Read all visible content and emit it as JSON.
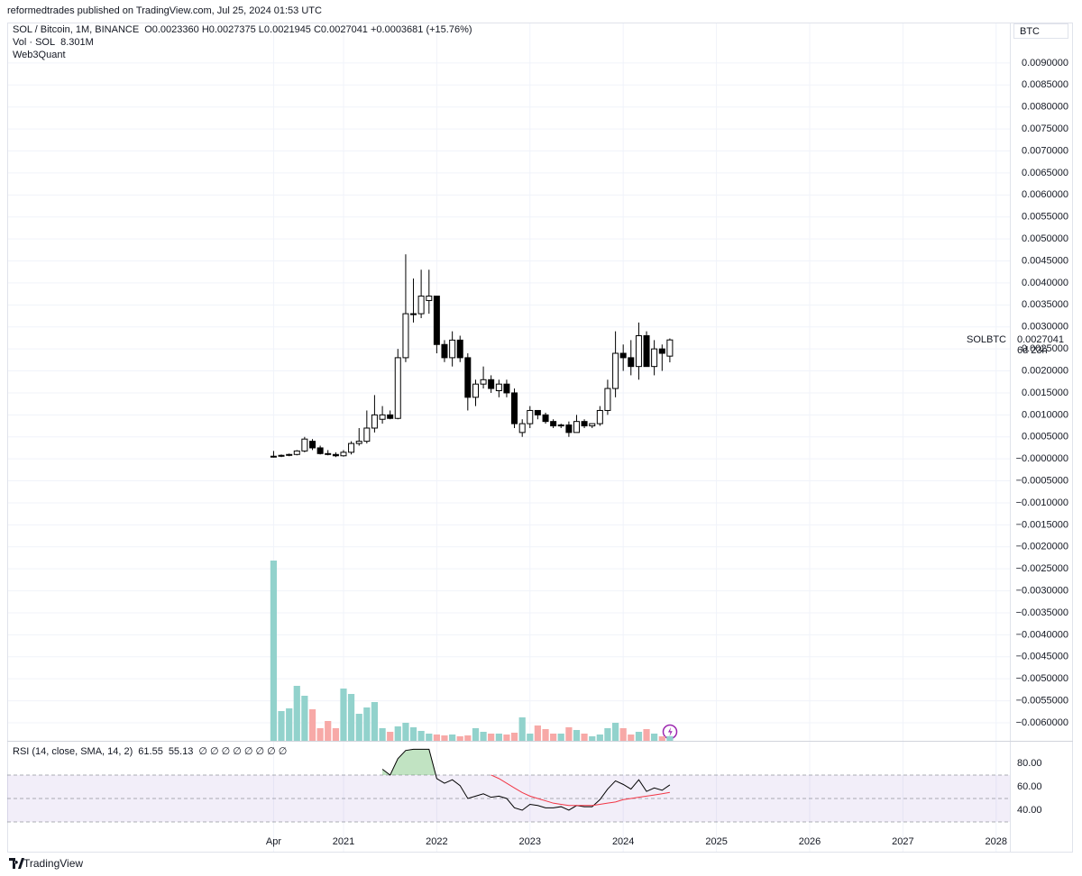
{
  "header": {
    "published": "reformedtrades published on TradingView.com, Jul 25, 2024 01:53 UTC"
  },
  "footer": {
    "brand": "TradingView"
  },
  "chart_data": {
    "type": "candlestick",
    "title": "SOL / Bitcoin, 1M, BINANCE",
    "ohlc_text": "O0.0023360 H0.0027375 L0.0021945 C0.0027041 +0.0003681 (+15.76%)",
    "indicator": "Web3Quant",
    "currency": "BTC",
    "symbol": "SOLBTC",
    "last_price_label": "0.0027041",
    "countdown": "6d 23h",
    "up_color": "#ffffff",
    "down_color": "#000000",
    "wick_color": "#000000",
    "grid": true,
    "x": [
      2020.25,
      2020.333,
      2020.417,
      2020.5,
      2020.583,
      2020.667,
      2020.75,
      2020.833,
      2020.917,
      2021,
      2021.083,
      2021.167,
      2021.25,
      2021.333,
      2021.417,
      2021.5,
      2021.583,
      2021.667,
      2021.75,
      2021.833,
      2021.917,
      2022,
      2022.083,
      2022.167,
      2022.25,
      2022.333,
      2022.417,
      2022.5,
      2022.583,
      2022.667,
      2022.75,
      2022.833,
      2022.917,
      2023,
      2023.083,
      2023.167,
      2023.25,
      2023.333,
      2023.417,
      2023.5,
      2023.583,
      2023.667,
      2023.75,
      2023.833,
      2023.917,
      2024,
      2024.083,
      2024.167,
      2024.25,
      2024.333,
      2024.417,
      2024.5
    ],
    "xlim": [
      2017.393,
      2028.147
    ],
    "xticks": [
      {
        "value": 2020.25,
        "label": "Apr"
      },
      2021,
      2022,
      2023,
      2024,
      2025,
      2026,
      2027,
      2028
    ],
    "open": [
      5e-05,
      6e-05,
      8e-05,
      0.0001,
      0.00018,
      0.0004,
      0.00025,
      0.00012,
      0.0001,
      7e-05,
      0.00015,
      0.00035,
      0.0004,
      0.0007,
      0.0009,
      0.001,
      0.00092,
      0.0023,
      0.0033,
      0.0033,
      0.0036,
      0.0037,
      0.0026,
      0.0023,
      0.0027,
      0.0023,
      0.0014,
      0.0017,
      0.0018,
      0.00155,
      0.0017,
      0.0015,
      0.0006,
      0.0008,
      0.0011,
      0.001,
      0.00085,
      0.00075,
      0.00077,
      0.0006,
      0.00085,
      0.00075,
      0.0008,
      0.0011,
      0.0016,
      0.0024,
      0.0023,
      0.0021,
      0.0028,
      0.0021,
      0.0025,
      0.002336
    ],
    "high": [
      0.00018,
      0.0001,
      0.00012,
      0.0002,
      0.0005,
      0.00045,
      0.0003,
      0.0002,
      0.00015,
      0.0002,
      0.0004,
      0.0007,
      0.0011,
      0.00145,
      0.0012,
      0.0011,
      0.0025,
      0.00465,
      0.0041,
      0.0043,
      0.0043,
      0.0037,
      0.0027,
      0.0029,
      0.0028,
      0.0024,
      0.0018,
      0.0021,
      0.0019,
      0.0018,
      0.0018,
      0.0016,
      0.0009,
      0.0012,
      0.0011,
      0.00105,
      0.0009,
      0.0008,
      0.00085,
      0.001,
      0.0009,
      0.0008,
      0.0012,
      0.0018,
      0.0029,
      0.0026,
      0.0027,
      0.0031,
      0.0029,
      0.0027,
      0.0026,
      0.0027375
    ],
    "low": [
      3e-05,
      4e-05,
      6e-05,
      8e-05,
      0.00015,
      0.0002,
      0.0001,
      8e-05,
      4e-05,
      5e-05,
      0.0001,
      0.0003,
      0.00035,
      0.0006,
      0.0008,
      0.0009,
      0.0009,
      0.0022,
      0.0031,
      0.0032,
      0.0033,
      0.0024,
      0.0022,
      0.0021,
      0.0022,
      0.0011,
      0.0012,
      0.0016,
      0.0015,
      0.0014,
      0.0014,
      0.0007,
      0.0005,
      0.0007,
      0.0009,
      0.0008,
      0.0007,
      0.0007,
      0.0005,
      0.0006,
      0.0007,
      0.0007,
      0.00075,
      0.001,
      0.0014,
      0.002,
      0.0019,
      0.0018,
      0.0021,
      0.0019,
      0.002,
      0.0021945
    ],
    "close": [
      6e-05,
      8e-05,
      0.0001,
      0.00018,
      0.00045,
      0.00025,
      0.00012,
      0.0001,
      7e-05,
      0.00015,
      0.00035,
      0.0004,
      0.0007,
      0.001,
      0.001,
      0.00092,
      0.0023,
      0.0033,
      0.0033,
      0.0037,
      0.0037,
      0.0026,
      0.0023,
      0.0027,
      0.0023,
      0.0014,
      0.0017,
      0.0018,
      0.0016,
      0.0017,
      0.0015,
      0.0008,
      0.0008,
      0.0011,
      0.001,
      0.00085,
      0.00075,
      0.00077,
      0.0006,
      0.00085,
      0.00075,
      0.0008,
      0.0011,
      0.0016,
      0.0024,
      0.0023,
      0.0021,
      0.0028,
      0.0021,
      0.0025,
      0.0024,
      0.0027041
    ],
    "ylim": [
      -0.00641,
      0.00992
    ],
    "yticks": [
      {
        "value": 0.009,
        "label": "0.0090000"
      },
      {
        "value": 0.0085,
        "label": "0.0085000"
      },
      {
        "value": 0.008,
        "label": "0.0080000"
      },
      {
        "value": 0.0075,
        "label": "0.0075000"
      },
      {
        "value": 0.007,
        "label": "0.0070000"
      },
      {
        "value": 0.0065,
        "label": "0.0065000"
      },
      {
        "value": 0.006,
        "label": "0.0060000"
      },
      {
        "value": 0.0055,
        "label": "0.0055000"
      },
      {
        "value": 0.005,
        "label": "0.0050000"
      },
      {
        "value": 0.0045,
        "label": "0.0045000"
      },
      {
        "value": 0.004,
        "label": "0.0040000"
      },
      {
        "value": 0.0035,
        "label": "0.0035000"
      },
      {
        "value": 0.003,
        "label": "0.0030000"
      },
      {
        "value": 0.0025,
        "label": "0.0025000"
      },
      {
        "value": 0.002,
        "label": "0.0020000"
      },
      {
        "value": 0.0015,
        "label": "0.0015000"
      },
      {
        "value": 0.001,
        "label": "0.0010000"
      },
      {
        "value": 0.0005,
        "label": "0.0005000"
      },
      {
        "value": 0,
        "label": "−0.0000000"
      },
      {
        "value": -0.0005,
        "label": "−0.0005000"
      },
      {
        "value": -0.001,
        "label": "−0.0010000"
      },
      {
        "value": -0.0015,
        "label": "−0.0015000"
      },
      {
        "value": -0.002,
        "label": "−0.0020000"
      },
      {
        "value": -0.0025,
        "label": "−0.0025000"
      },
      {
        "value": -0.003,
        "label": "−0.0030000"
      },
      {
        "value": -0.0035,
        "label": "−0.0035000"
      },
      {
        "value": -0.004,
        "label": "−0.0040000"
      },
      {
        "value": -0.0045,
        "label": "−0.0045000"
      },
      {
        "value": -0.005,
        "label": "−0.0050000"
      },
      {
        "value": -0.0055,
        "label": "−0.0055000"
      },
      {
        "value": -0.006,
        "label": "−0.0060000"
      }
    ],
    "volume": {
      "name": "Vol · SOL",
      "last_label": "8.301M",
      "up_color": "#92d2cc",
      "down_color": "#f7a9a7",
      "values": [
        320,
        52.8,
        57.6,
        97.6,
        80,
        56,
        22.4,
        35.2,
        22.4,
        92.8,
        83.2,
        48,
        59.2,
        68.8,
        22.4,
        16,
        25.6,
        32,
        24,
        17.6,
        12.8,
        11.2,
        9.6,
        11.2,
        8,
        9.6,
        22.4,
        16,
        12.8,
        12.8,
        11.2,
        14.4,
        41.6,
        12.8,
        27.2,
        20.8,
        12.8,
        12.8,
        24,
        19.2,
        12.8,
        8,
        11.2,
        22.4,
        32,
        22.4,
        11.2,
        16,
        20.8,
        12.8,
        8,
        8.301
      ]
    },
    "rsi": {
      "title": "RSI (14, close, SMA, 14, 2)",
      "value_label": "61.55",
      "sma_label": "55.13",
      "extras": "∅ ∅ ∅ ∅ ∅ ∅ ∅ ∅",
      "ylim": [
        4.6,
        99.2
      ],
      "yticks": [
        {
          "value": 80,
          "label": "80.00"
        },
        {
          "value": 60,
          "label": "60.00"
        },
        {
          "value": 40,
          "label": "40.00"
        }
      ],
      "bands": {
        "upper": 70,
        "middle": 50,
        "lower": 30
      },
      "band_color": "#7e57c2",
      "series": [
        {
          "name": "RSI",
          "color": "#000000",
          "values": [
            null,
            null,
            null,
            null,
            null,
            null,
            null,
            null,
            null,
            null,
            null,
            null,
            null,
            null,
            75,
            70,
            84,
            91,
            92,
            92,
            92,
            67,
            63,
            66,
            61,
            50,
            52,
            54,
            51,
            52,
            50,
            42,
            40,
            45,
            44,
            42,
            42,
            43,
            40,
            44,
            43,
            43,
            49,
            58,
            65,
            62,
            58,
            66,
            56,
            59,
            57,
            61.55
          ]
        },
        {
          "name": "SMA",
          "color": "#f23645",
          "values": [
            null,
            null,
            null,
            null,
            null,
            null,
            null,
            null,
            null,
            null,
            null,
            null,
            null,
            null,
            null,
            null,
            null,
            null,
            null,
            null,
            null,
            null,
            null,
            null,
            null,
            null,
            null,
            null,
            70,
            67,
            63,
            59,
            55,
            52,
            50,
            48,
            46,
            45,
            44,
            44,
            44,
            44,
            45,
            46,
            47,
            49,
            50,
            51,
            52,
            53,
            54,
            55.13
          ]
        }
      ]
    }
  }
}
